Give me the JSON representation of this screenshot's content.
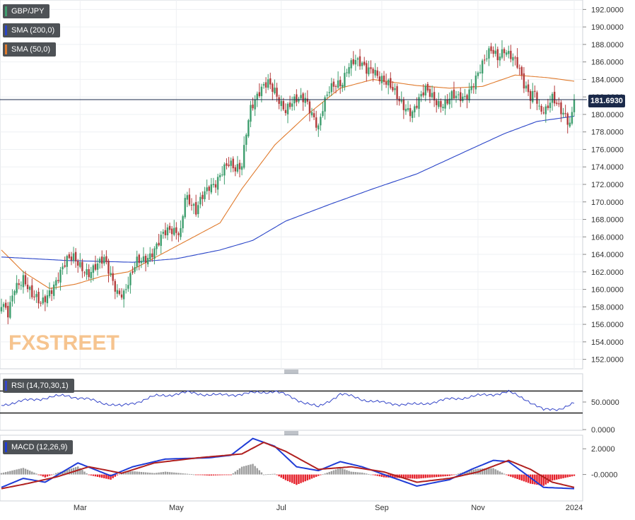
{
  "legend": {
    "symbol": "GBP/JPY",
    "sma200": "SMA (200,0)",
    "sma50": "SMA (50,0)",
    "rsi": "RSI (14,70,30,1)",
    "macd": "MACD (12,26,9)"
  },
  "current_price_label": "181.6930",
  "logo": {
    "fx": "FX",
    "street": "STREET"
  },
  "colors": {
    "up": "#3e9e6e",
    "down": "#b43c3c",
    "sma200": "#2a45c8",
    "sma50": "#e07a2c",
    "rsi_line": "#3546c8",
    "macd_line": "#1f3cd6",
    "signal_line": "#b0201f",
    "hist_pos": "#9c9c9c",
    "hist_neg": "#e5202a",
    "price_line": "#1b2a4a"
  },
  "chart_data": [
    {
      "type": "candlestick",
      "title": "GBP/JPY",
      "x_tick_labels": [
        "Mar",
        "May",
        "Jul",
        "Sep",
        "Nov",
        "2024"
      ],
      "y_tick_labels": [
        "152.0000",
        "154.0000",
        "156.0000",
        "158.0000",
        "160.0000",
        "162.0000",
        "164.0000",
        "166.0000",
        "168.0000",
        "170.0000",
        "172.0000",
        "174.0000",
        "176.0000",
        "178.0000",
        "180.0000",
        "182.0000",
        "184.0000",
        "186.0000",
        "188.0000",
        "190.0000",
        "192.0000"
      ],
      "ylim": [
        151.0,
        193.0
      ],
      "last_value": 181.693,
      "series": [
        {
          "name": "GBP/JPY",
          "close_anchors": [
            [
              0,
              158.0
            ],
            [
              3,
              157.0
            ],
            [
              6,
              160.5
            ],
            [
              10,
              161.5
            ],
            [
              14,
              159.0
            ],
            [
              18,
              158.2
            ],
            [
              22,
              160.0
            ],
            [
              26,
              161.5
            ],
            [
              30,
              163.0
            ],
            [
              33,
              163.5
            ],
            [
              36,
              163.0
            ],
            [
              40,
              162.0
            ],
            [
              44,
              162.5
            ],
            [
              47,
              163.2
            ],
            [
              50,
              161.8
            ],
            [
              53,
              160.0
            ],
            [
              56,
              159.5
            ],
            [
              59,
              161.0
            ],
            [
              62,
              163.0
            ],
            [
              65,
              163.6
            ],
            [
              68,
              164.2
            ],
            [
              71,
              165.0
            ],
            [
              74,
              166.0
            ],
            [
              77,
              166.5
            ],
            [
              80,
              166.8
            ],
            [
              82,
              167.0
            ],
            [
              84,
              171.0
            ],
            [
              86,
              170.0
            ],
            [
              89,
              168.5
            ],
            [
              92,
              170.5
            ],
            [
              95,
              172.0
            ],
            [
              98,
              172.5
            ],
            [
              101,
              173.5
            ],
            [
              104,
              174.0
            ],
            [
              107,
              173.5
            ],
            [
              110,
              174.5
            ],
            [
              112,
              178.5
            ],
            [
              114,
              181.0
            ],
            [
              116,
              181.5
            ],
            [
              119,
              182.5
            ],
            [
              122,
              183.5
            ],
            [
              125,
              183.0
            ],
            [
              127,
              182.0
            ],
            [
              130,
              180.5
            ],
            [
              133,
              181.0
            ],
            [
              136,
              181.5
            ],
            [
              139,
              182.0
            ],
            [
              142,
              180.5
            ],
            [
              145,
              178.5
            ],
            [
              147,
              180.5
            ],
            [
              150,
              182.5
            ],
            [
              153,
              183.5
            ],
            [
              156,
              184.0
            ],
            [
              158,
              185.5
            ],
            [
              161,
              186.0
            ],
            [
              164,
              185.5
            ],
            [
              167,
              185.0
            ],
            [
              170,
              185.5
            ],
            [
              173,
              184.5
            ],
            [
              176,
              183.5
            ],
            [
              179,
              182.5
            ],
            [
              182,
              181.5
            ],
            [
              185,
              181.0
            ],
            [
              188,
              180.5
            ],
            [
              191,
              181.5
            ],
            [
              194,
              182.5
            ],
            [
              197,
              182.0
            ],
            [
              200,
              181.5
            ],
            [
              203,
              181.5
            ],
            [
              206,
              182.0
            ],
            [
              209,
              181.5
            ],
            [
              212,
              181.8
            ],
            [
              215,
              183.5
            ],
            [
              218,
              185.0
            ],
            [
              221,
              186.0
            ],
            [
              224,
              187.0
            ],
            [
              227,
              186.5
            ],
            [
              230,
              187.8
            ],
            [
              233,
              187.0
            ],
            [
              236,
              185.5
            ],
            [
              239,
              183.0
            ],
            [
              242,
              182.0
            ],
            [
              244,
              183.0
            ],
            [
              246,
              181.0
            ],
            [
              249,
              180.5
            ],
            [
              252,
              181.5
            ],
            [
              255,
              180.5
            ],
            [
              258,
              180.0
            ],
            [
              260,
              179.3
            ],
            [
              262,
              181.693
            ]
          ]
        },
        {
          "name": "SMA (50,0)",
          "anchors": [
            [
              0,
              164.5
            ],
            [
              10,
              162.0
            ],
            [
              22,
              160.1
            ],
            [
              34,
              160.6
            ],
            [
              46,
              161.5
            ],
            [
              58,
              162.0
            ],
            [
              70,
              163.6
            ],
            [
              85,
              165.6
            ],
            [
              100,
              167.6
            ],
            [
              110,
              171.5
            ],
            [
              125,
              176.5
            ],
            [
              140,
              180.0
            ],
            [
              155,
              183.0
            ],
            [
              170,
              184.0
            ],
            [
              190,
              183.3
            ],
            [
              205,
              183.0
            ],
            [
              220,
              183.2
            ],
            [
              235,
              184.5
            ],
            [
              250,
              184.2
            ],
            [
              262,
              183.8
            ]
          ]
        },
        {
          "name": "SMA (200,0)",
          "anchors": [
            [
              0,
              163.7
            ],
            [
              30,
              163.3
            ],
            [
              60,
              163.1
            ],
            [
              80,
              163.5
            ],
            [
              100,
              164.5
            ],
            [
              115,
              165.6
            ],
            [
              130,
              167.8
            ],
            [
              150,
              169.7
            ],
            [
              170,
              171.5
            ],
            [
              190,
              173.2
            ],
            [
              210,
              175.5
            ],
            [
              230,
              177.8
            ],
            [
              245,
              179.2
            ],
            [
              262,
              179.8
            ]
          ]
        }
      ]
    },
    {
      "type": "line",
      "title": "RSI (14,70,30,1)",
      "y_tick_labels": [
        "50.0000",
        "0.0000"
      ],
      "ylim": [
        0,
        100
      ],
      "levels": [
        70,
        30
      ],
      "series": [
        {
          "name": "RSI (14,70,30,1)",
          "anchors": [
            [
              0,
              45
            ],
            [
              15,
              55
            ],
            [
              30,
              62
            ],
            [
              45,
              50
            ],
            [
              55,
              42
            ],
            [
              70,
              60
            ],
            [
              85,
              67
            ],
            [
              100,
              62
            ],
            [
              115,
              66
            ],
            [
              125,
              70
            ],
            [
              135,
              55
            ],
            [
              145,
              40
            ],
            [
              155,
              65
            ],
            [
              165,
              55
            ],
            [
              175,
              48
            ],
            [
              190,
              45
            ],
            [
              205,
              55
            ],
            [
              220,
              62
            ],
            [
              232,
              68
            ],
            [
              240,
              55
            ],
            [
              248,
              35
            ],
            [
              255,
              38
            ],
            [
              262,
              47
            ]
          ]
        }
      ]
    },
    {
      "type": "line",
      "title": "MACD (12,26,9)",
      "y_tick_labels": [
        "2.0000",
        "-0.0000"
      ],
      "ylim": [
        -2.0,
        3.0
      ],
      "series": [
        {
          "name": "MACD",
          "anchors": [
            [
              0,
              -1.0
            ],
            [
              10,
              -0.3
            ],
            [
              20,
              -0.6
            ],
            [
              35,
              0.9
            ],
            [
              50,
              -0.1
            ],
            [
              60,
              0.6
            ],
            [
              75,
              1.2
            ],
            [
              95,
              1.3
            ],
            [
              105,
              1.5
            ],
            [
              115,
              2.8
            ],
            [
              125,
              2.2
            ],
            [
              135,
              0.6
            ],
            [
              145,
              0.3
            ],
            [
              155,
              1.0
            ],
            [
              165,
              0.6
            ],
            [
              175,
              0.0
            ],
            [
              190,
              -0.9
            ],
            [
              205,
              -0.4
            ],
            [
              215,
              0.4
            ],
            [
              225,
              1.1
            ],
            [
              232,
              1.0
            ],
            [
              240,
              0.0
            ],
            [
              248,
              -1.0
            ],
            [
              262,
              -1.1
            ]
          ]
        },
        {
          "name": "Signal",
          "anchors": [
            [
              0,
              -1.1
            ],
            [
              12,
              -0.7
            ],
            [
              25,
              -0.2
            ],
            [
              40,
              0.6
            ],
            [
              55,
              0.1
            ],
            [
              70,
              0.9
            ],
            [
              90,
              1.3
            ],
            [
              110,
              1.6
            ],
            [
              120,
              2.5
            ],
            [
              130,
              1.8
            ],
            [
              145,
              0.4
            ],
            [
              160,
              0.6
            ],
            [
              175,
              0.2
            ],
            [
              190,
              -0.6
            ],
            [
              205,
              -0.3
            ],
            [
              218,
              0.2
            ],
            [
              232,
              1.1
            ],
            [
              242,
              0.4
            ],
            [
              252,
              -0.6
            ],
            [
              262,
              -1.0
            ]
          ]
        }
      ]
    }
  ]
}
